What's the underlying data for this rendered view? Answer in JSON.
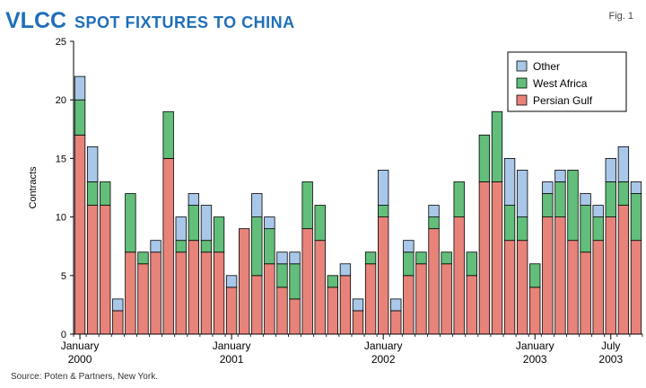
{
  "header": {
    "title_big": "VLCC",
    "title_small": "SPOT FIXTURES TO CHINA",
    "fig_label": "Fig. 1"
  },
  "footer": {
    "source": "Source: Poten & Partners, New York."
  },
  "colors": {
    "persian_gulf": "#e8837a",
    "west_africa": "#62be7a",
    "other": "#a9c7e8",
    "title": "#1f6fb8",
    "axis": "#000000",
    "grid": "#000000"
  },
  "chart_data": {
    "type": "bar",
    "stacked": true,
    "ylabel": "Contracts",
    "ylim": [
      0,
      25
    ],
    "yticks": [
      0,
      5,
      10,
      15,
      20,
      25
    ],
    "grid": false,
    "legend_position": "top-right",
    "x_tick_labels": [
      {
        "index": 0,
        "line1": "January",
        "line2": "2000"
      },
      {
        "index": 12,
        "line1": "January",
        "line2": "2001"
      },
      {
        "index": 24,
        "line1": "January",
        "line2": "2002"
      },
      {
        "index": 36,
        "line1": "January",
        "line2": "2003"
      },
      {
        "index": 42,
        "line1": "July",
        "line2": "2003"
      }
    ],
    "series": [
      {
        "name": "Persian Gulf",
        "values": [
          17,
          11,
          11,
          2,
          7,
          6,
          7,
          15,
          7,
          8,
          7,
          7,
          4,
          9,
          5,
          6,
          4,
          3,
          9,
          8,
          4,
          5,
          2,
          6,
          10,
          2,
          5,
          6,
          9,
          6,
          10,
          5,
          13,
          13,
          8,
          8,
          4,
          10,
          10,
          8,
          7,
          8,
          10,
          11,
          8
        ]
      },
      {
        "name": "West Africa",
        "values": [
          3,
          2,
          2,
          0,
          5,
          1,
          0,
          4,
          1,
          3,
          1,
          3,
          0,
          0,
          5,
          3,
          2,
          3,
          4,
          3,
          1,
          0,
          0,
          1,
          1,
          0,
          2,
          1,
          1,
          1,
          3,
          2,
          4,
          6,
          3,
          2,
          2,
          2,
          3,
          6,
          4,
          2,
          3,
          2,
          4
        ]
      },
      {
        "name": "Other",
        "values": [
          2,
          3,
          0,
          1,
          0,
          0,
          1,
          0,
          2,
          1,
          3,
          0,
          1,
          0,
          2,
          1,
          1,
          1,
          0,
          0,
          0,
          1,
          1,
          0,
          3,
          1,
          1,
          0,
          1,
          0,
          0,
          0,
          0,
          0,
          4,
          4,
          0,
          1,
          1,
          0,
          1,
          1,
          2,
          3,
          1
        ]
      }
    ]
  }
}
